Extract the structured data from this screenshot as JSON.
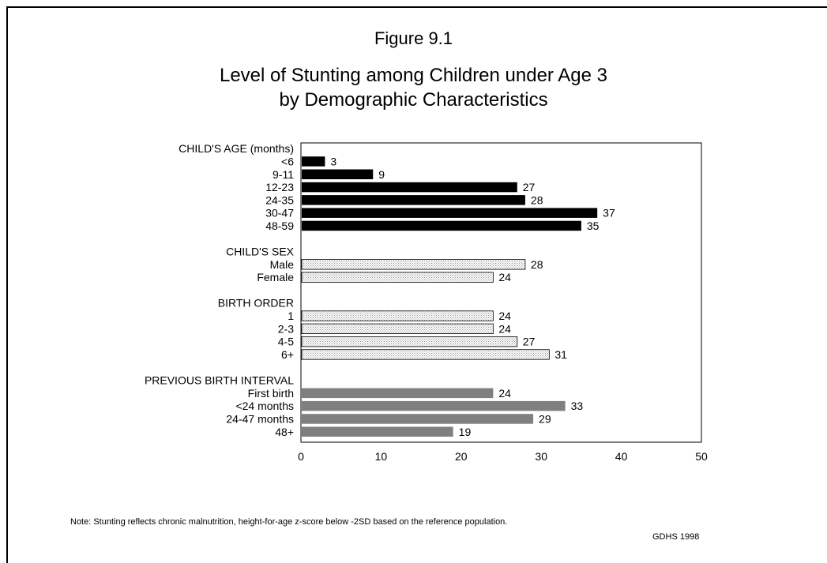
{
  "figure_label": "Figure 9.1",
  "title_lines": [
    "Level of Stunting among Children under Age 3",
    "by Demographic Characteristics"
  ],
  "note": "Note:  Stunting reflects chronic malnutrition, height-for-age z-score below -2SD based on the reference population.",
  "source": "GDHS 1998",
  "colors": {
    "black": "#000000",
    "light_hatch": "#d2d2d2",
    "dark_gray": "#7f7f7f"
  },
  "chart_data": {
    "type": "bar",
    "orientation": "horizontal",
    "xlim": [
      0,
      50
    ],
    "xticks": [
      0,
      10,
      20,
      30,
      40,
      50
    ],
    "grid": false,
    "groups": [
      {
        "heading": "CHILD'S AGE (months)",
        "fill": "black",
        "bars": [
          {
            "label": "<6",
            "value": 3
          },
          {
            "label": "9-11",
            "value": 9
          },
          {
            "label": "12-23",
            "value": 27
          },
          {
            "label": "24-35",
            "value": 28
          },
          {
            "label": "30-47",
            "value": 37
          },
          {
            "label": "48-59",
            "value": 35
          }
        ]
      },
      {
        "heading": "CHILD'S SEX",
        "fill": "light_hatch",
        "bars": [
          {
            "label": "Male",
            "value": 28
          },
          {
            "label": "Female",
            "value": 24
          }
        ]
      },
      {
        "heading": "BIRTH ORDER",
        "fill": "light_hatch",
        "bars": [
          {
            "label": "1",
            "value": 24
          },
          {
            "label": "2-3",
            "value": 24
          },
          {
            "label": "4-5",
            "value": 27
          },
          {
            "label": "6+",
            "value": 31
          }
        ]
      },
      {
        "heading": "PREVIOUS BIRTH INTERVAL",
        "fill": "dark_gray",
        "bars": [
          {
            "label": "First birth",
            "value": 24
          },
          {
            "label": "<24 months",
            "value": 33
          },
          {
            "label": "24-47 months",
            "value": 29
          },
          {
            "label": "48+",
            "value": 19
          }
        ]
      }
    ]
  }
}
